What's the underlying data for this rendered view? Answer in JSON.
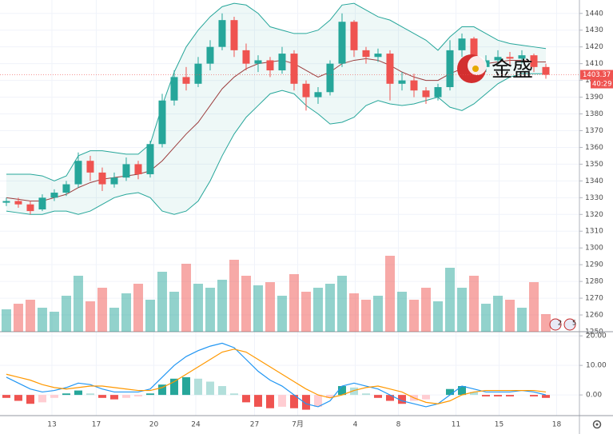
{
  "chart_data": {
    "type": "candlestick",
    "ylim": [
      1250,
      1448
    ],
    "yticks": [
      1440,
      1430,
      1420,
      1410,
      1400,
      1390,
      1380,
      1370,
      1360,
      1350,
      1340,
      1330,
      1320,
      1310,
      1300,
      1290,
      1280,
      1270,
      1260,
      1250
    ],
    "xlim": [
      -0.53,
      47.8
    ],
    "xticks": [
      {
        "value": 3.8,
        "label": "13"
      },
      {
        "value": 7.5,
        "label": "17"
      },
      {
        "value": 12.3,
        "label": "20"
      },
      {
        "value": 15.8,
        "label": "24"
      },
      {
        "value": 20.7,
        "label": "27"
      },
      {
        "value": 24.3,
        "label": "7月"
      },
      {
        "value": 29.1,
        "label": "4"
      },
      {
        "value": 32.7,
        "label": "8"
      },
      {
        "value": 37.5,
        "label": "11"
      },
      {
        "value": 41.1,
        "label": "15"
      },
      {
        "value": 45.9,
        "label": "18"
      }
    ],
    "grid": true,
    "up_color": "#26a69a",
    "down_color": "#ef5350",
    "candles": {
      "open": [
        1327,
        1328,
        1326,
        1323,
        1330,
        1333,
        1338,
        1352,
        1345,
        1338,
        1342,
        1350,
        1344,
        1362,
        1388,
        1402,
        1398,
        1410,
        1420,
        1436,
        1418,
        1410,
        1412,
        1406,
        1416,
        1398,
        1390,
        1393,
        1410,
        1435,
        1418,
        1414,
        1416,
        1398,
        1400,
        1394,
        1390,
        1396,
        1418,
        1425,
        1408,
        1412,
        1414,
        1413,
        1415,
        1408
      ],
      "high": [
        1330,
        1330,
        1328,
        1332,
        1335,
        1340,
        1357,
        1355,
        1348,
        1345,
        1354,
        1352,
        1364,
        1392,
        1406,
        1408,
        1414,
        1424,
        1440,
        1438,
        1422,
        1415,
        1414,
        1420,
        1418,
        1400,
        1396,
        1412,
        1440,
        1436,
        1420,
        1419,
        1418,
        1405,
        1404,
        1396,
        1398,
        1424,
        1428,
        1426,
        1415,
        1418,
        1417,
        1418,
        1416,
        1410
      ],
      "low": [
        1325,
        1324,
        1320,
        1322,
        1328,
        1331,
        1336,
        1340,
        1334,
        1336,
        1340,
        1341,
        1342,
        1360,
        1385,
        1394,
        1396,
        1406,
        1418,
        1414,
        1406,
        1405,
        1402,
        1404,
        1394,
        1382,
        1386,
        1391,
        1408,
        1414,
        1410,
        1411,
        1388,
        1394,
        1390,
        1386,
        1388,
        1394,
        1414,
        1404,
        1405,
        1410,
        1409,
        1410,
        1405,
        1401
      ],
      "close": [
        1328,
        1326,
        1322,
        1330,
        1333,
        1338,
        1352,
        1345,
        1338,
        1342,
        1350,
        1344,
        1362,
        1388,
        1402,
        1398,
        1410,
        1420,
        1436,
        1418,
        1410,
        1412,
        1406,
        1416,
        1398,
        1390,
        1393,
        1410,
        1435,
        1418,
        1414,
        1416,
        1398,
        1400,
        1394,
        1390,
        1396,
        1418,
        1425,
        1408,
        1412,
        1414,
        1413,
        1415,
        1408,
        1403.37
      ]
    },
    "bollinger": {
      "color": "#26a69a",
      "middle_color": "#9c3d3d",
      "upper": [
        1344,
        1344,
        1344,
        1343,
        1340,
        1343,
        1355,
        1358,
        1358,
        1357,
        1356,
        1356,
        1362,
        1385,
        1405,
        1420,
        1430,
        1438,
        1444,
        1446,
        1445,
        1440,
        1432,
        1430,
        1428,
        1428,
        1430,
        1436,
        1445,
        1446,
        1442,
        1438,
        1436,
        1432,
        1428,
        1424,
        1418,
        1426,
        1432,
        1432,
        1428,
        1424,
        1422,
        1421,
        1420,
        1419
      ],
      "middle": [
        1330,
        1329,
        1328,
        1328,
        1330,
        1332,
        1336,
        1339,
        1341,
        1342,
        1343,
        1344,
        1346,
        1352,
        1360,
        1368,
        1375,
        1385,
        1395,
        1402,
        1407,
        1410,
        1411,
        1412,
        1410,
        1406,
        1402,
        1405,
        1410,
        1412,
        1413,
        1412,
        1409,
        1405,
        1402,
        1400,
        1400,
        1404,
        1407,
        1409,
        1410,
        1411,
        1412,
        1412,
        1411,
        1411
      ],
      "lower": [
        1322,
        1321,
        1320,
        1320,
        1322,
        1322,
        1320,
        1322,
        1326,
        1330,
        1332,
        1333,
        1330,
        1322,
        1320,
        1322,
        1328,
        1340,
        1355,
        1368,
        1378,
        1385,
        1392,
        1394,
        1392,
        1385,
        1380,
        1374,
        1375,
        1378,
        1385,
        1388,
        1386,
        1385,
        1386,
        1388,
        1390,
        1384,
        1382,
        1386,
        1392,
        1398,
        1402,
        1404,
        1404,
        1404
      ]
    },
    "volume": {
      "ylim": [
        0,
        110
      ],
      "values": [
        28,
        35,
        40,
        30,
        25,
        45,
        70,
        38,
        55,
        30,
        48,
        60,
        40,
        75,
        50,
        85,
        60,
        55,
        65,
        90,
        70,
        58,
        62,
        45,
        72,
        50,
        55,
        60,
        70,
        48,
        40,
        45,
        95,
        50,
        40,
        55,
        38,
        80,
        55,
        70,
        35,
        45,
        40,
        30,
        62,
        22
      ]
    },
    "macd": {
      "ylim": [
        -7,
        21.4
      ],
      "yticks": [
        {
          "value": 20,
          "label": "20.00"
        },
        {
          "value": 10,
          "label": "10.00"
        },
        {
          "value": 0,
          "label": "0.00"
        }
      ],
      "macd_color": "#2196f3",
      "signal_color": "#ff9800",
      "macd": [
        6,
        4,
        2,
        1,
        1.5,
        2.5,
        4,
        3.5,
        2,
        1,
        1,
        1,
        2,
        6,
        10,
        13,
        15,
        16.5,
        17.5,
        16,
        12,
        8,
        5,
        3,
        0,
        -3,
        -4,
        -2,
        3,
        4,
        3,
        2,
        0,
        -2,
        -3,
        -4,
        -3,
        0,
        3,
        2,
        1,
        1,
        1,
        1.5,
        1,
        0
      ],
      "signal": [
        7,
        6,
        5,
        3.5,
        2.5,
        2,
        2.5,
        3,
        3,
        2.5,
        2,
        1.5,
        1.5,
        2.5,
        4.5,
        7,
        9.5,
        12,
        14.5,
        15.5,
        14.5,
        12,
        9.5,
        7,
        4.5,
        2,
        0,
        -1,
        0,
        1.5,
        2.5,
        3,
        2,
        1,
        -1,
        -2.5,
        -3,
        -2,
        0,
        1,
        1.5,
        1.5,
        1.5,
        1.5,
        1.5,
        1
      ],
      "histogram": [
        -1,
        -2,
        -3,
        -2.5,
        -1,
        0.5,
        1.5,
        0.5,
        -1,
        -1.5,
        -1,
        -0.5,
        0.5,
        3.5,
        5.5,
        6,
        5.5,
        4.5,
        3,
        0.5,
        -2.5,
        -4,
        -4.5,
        -4,
        -4.5,
        -5,
        -4,
        -1,
        3,
        2.5,
        0.5,
        -1,
        -2,
        -3,
        -2,
        -1.5,
        0,
        2,
        3,
        1,
        -0.5,
        -0.5,
        -0.5,
        0,
        -0.5,
        -1
      ]
    },
    "last_price": {
      "value": 1403.37,
      "label": "1403.37"
    },
    "countdown": "40:29",
    "watermark": "金盛",
    "event_markers": [
      "2",
      "5"
    ]
  }
}
